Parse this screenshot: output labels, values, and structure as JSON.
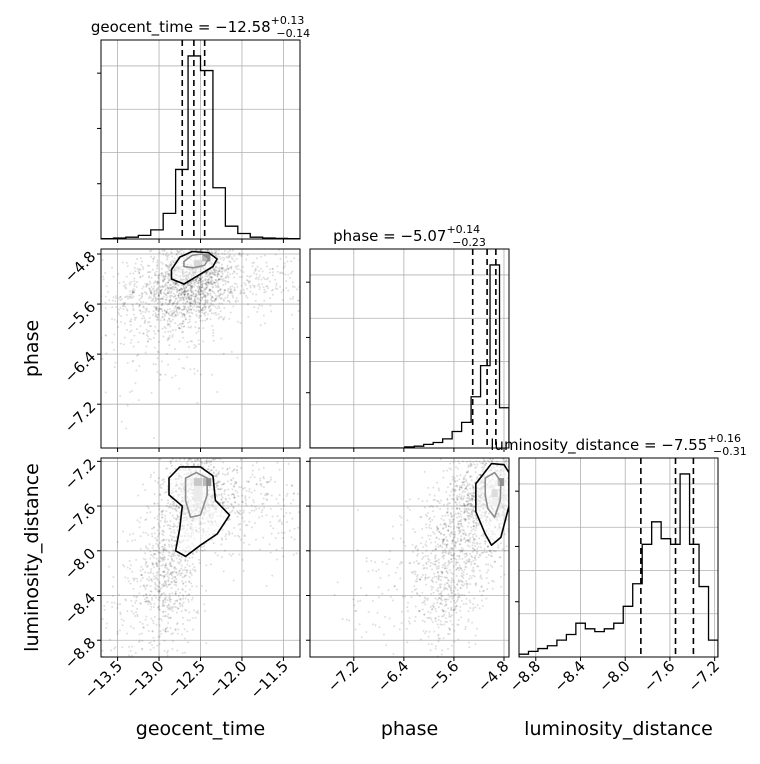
{
  "chart_data": {
    "type": "corner",
    "parameters": [
      "geocent_time",
      "phase",
      "luminosity_distance"
    ],
    "axis_labels": {
      "geocent_time": "geocent_time",
      "phase": "phase",
      "luminosity_distance": "luminosity_distance"
    },
    "ranges": {
      "geocent_time": [
        -13.7,
        -11.3
      ],
      "phase": [
        -7.9,
        -4.72
      ],
      "luminosity_distance": [
        -8.95,
        -7.17
      ]
    },
    "ticks": {
      "geocent_time": [
        -13.5,
        -13.0,
        -12.5,
        -12.0,
        -11.5
      ],
      "phase": [
        -7.2,
        -6.4,
        -5.6,
        -4.8
      ],
      "luminosity_distance": [
        -8.8,
        -8.4,
        -8.0,
        -7.6,
        -7.2
      ]
    },
    "tick_labels": {
      "geocent_time": [
        "−13.5",
        "−13.0",
        "−12.5",
        "−12.0",
        "−11.5"
      ],
      "phase": [
        "−7.2",
        "−6.4",
        "−5.6",
        "−4.8"
      ],
      "luminosity_distance": [
        "−8.8",
        "−8.4",
        "−8.0",
        "−7.6",
        "−7.2"
      ]
    },
    "titles": [
      {
        "param": "geocent_time",
        "label": "geocent_time",
        "median": "−12.58",
        "plus": "+0.13",
        "minus": "−0.14"
      },
      {
        "param": "phase",
        "label": "phase",
        "median": "−5.07",
        "plus": "+0.14",
        "minus": "−0.23"
      },
      {
        "param": "luminosity_distance",
        "label": "luminosity_distance",
        "median": "−7.55",
        "plus": "+0.16",
        "minus": "−0.31"
      }
    ],
    "quantiles": {
      "geocent_time": [
        -12.72,
        -12.58,
        -12.45
      ],
      "phase": [
        -5.3,
        -5.07,
        -4.93
      ],
      "luminosity_distance": [
        -7.86,
        -7.55,
        -7.39
      ]
    },
    "histograms": {
      "geocent_time": [
        0.2,
        0.5,
        1,
        2,
        5,
        14,
        38,
        100,
        92,
        28,
        7,
        3,
        1,
        0.5,
        0.3,
        0.2
      ],
      "phase": [
        0,
        0,
        0,
        0,
        0,
        0,
        0,
        0,
        0,
        0,
        0.6,
        1,
        2,
        3,
        5,
        9,
        14,
        28,
        45,
        100,
        22
      ],
      "luminosity_distance": [
        1,
        2,
        3,
        4,
        6,
        8,
        12,
        10,
        9,
        10,
        12,
        18,
        26,
        40,
        48,
        42,
        40,
        65,
        40,
        25,
        6
      ]
    },
    "density_clusters": [
      {
        "pair": [
          "geocent_time",
          "phase"
        ],
        "center": [
          -12.55,
          -5.1
        ],
        "spread": [
          0.22,
          0.35
        ],
        "n": 900
      },
      {
        "pair": [
          "geocent_time",
          "phase"
        ],
        "center": [
          -12.85,
          -5.5
        ],
        "spread": [
          0.35,
          0.3
        ],
        "n": 600
      },
      {
        "pair": [
          "geocent_time",
          "phase"
        ],
        "center": [
          -12.1,
          -5.2
        ],
        "spread": [
          0.55,
          0.3
        ],
        "n": 400
      },
      {
        "pair": [
          "geocent_time",
          "phase"
        ],
        "center": [
          -13.1,
          -6.0
        ],
        "spread": [
          0.45,
          0.6
        ],
        "n": 200
      },
      {
        "pair": [
          "geocent_time",
          "luminosity_distance"
        ],
        "center": [
          -12.55,
          -7.5
        ],
        "spread": [
          0.2,
          0.2
        ],
        "n": 900
      },
      {
        "pair": [
          "geocent_time",
          "luminosity_distance"
        ],
        "center": [
          -12.9,
          -8.2
        ],
        "spread": [
          0.18,
          0.3
        ],
        "n": 600
      },
      {
        "pair": [
          "geocent_time",
          "luminosity_distance"
        ],
        "center": [
          -12.0,
          -7.6
        ],
        "spread": [
          0.5,
          0.25
        ],
        "n": 400
      },
      {
        "pair": [
          "geocent_time",
          "luminosity_distance"
        ],
        "center": [
          -13.3,
          -8.6
        ],
        "spread": [
          0.35,
          0.25
        ],
        "n": 150
      },
      {
        "pair": [
          "phase",
          "luminosity_distance"
        ],
        "center": [
          -5.05,
          -7.5
        ],
        "spread": [
          0.3,
          0.2
        ],
        "n": 900
      },
      {
        "pair": [
          "phase",
          "luminosity_distance"
        ],
        "center": [
          -5.6,
          -7.9
        ],
        "spread": [
          0.35,
          0.25
        ],
        "n": 500
      },
      {
        "pair": [
          "phase",
          "luminosity_distance"
        ],
        "center": [
          -5.7,
          -8.4
        ],
        "spread": [
          0.3,
          0.25
        ],
        "n": 300
      },
      {
        "pair": [
          "phase",
          "luminosity_distance"
        ],
        "center": [
          -6.4,
          -8.4
        ],
        "spread": [
          0.5,
          0.3
        ],
        "n": 120
      }
    ],
    "contours": [
      {
        "pair": [
          "geocent_time",
          "phase"
        ],
        "level": "inner",
        "points": [
          [
            -12.7,
            -4.92
          ],
          [
            -12.6,
            -4.82
          ],
          [
            -12.48,
            -4.8
          ],
          [
            -12.4,
            -4.87
          ],
          [
            -12.45,
            -4.98
          ],
          [
            -12.58,
            -5.02
          ],
          [
            -12.7,
            -5.0
          ]
        ]
      },
      {
        "pair": [
          "geocent_time",
          "phase"
        ],
        "level": "outer",
        "points": [
          [
            -12.85,
            -5.05
          ],
          [
            -12.75,
            -4.85
          ],
          [
            -12.6,
            -4.76
          ],
          [
            -12.4,
            -4.78
          ],
          [
            -12.3,
            -4.88
          ],
          [
            -12.35,
            -5.0
          ],
          [
            -12.5,
            -5.12
          ],
          [
            -12.7,
            -5.28
          ],
          [
            -12.85,
            -5.2
          ]
        ]
      },
      {
        "pair": [
          "geocent_time",
          "luminosity_distance"
        ],
        "level": "inner",
        "points": [
          [
            -12.68,
            -7.35
          ],
          [
            -12.55,
            -7.3
          ],
          [
            -12.42,
            -7.35
          ],
          [
            -12.42,
            -7.5
          ],
          [
            -12.5,
            -7.68
          ],
          [
            -12.62,
            -7.7
          ],
          [
            -12.68,
            -7.55
          ]
        ]
      },
      {
        "pair": [
          "geocent_time",
          "luminosity_distance"
        ],
        "level": "outer",
        "points": [
          [
            -12.88,
            -7.35
          ],
          [
            -12.75,
            -7.25
          ],
          [
            -12.5,
            -7.25
          ],
          [
            -12.35,
            -7.33
          ],
          [
            -12.32,
            -7.55
          ],
          [
            -12.15,
            -7.68
          ],
          [
            -12.3,
            -7.85
          ],
          [
            -12.5,
            -7.95
          ],
          [
            -12.68,
            -8.05
          ],
          [
            -12.8,
            -8.0
          ],
          [
            -12.75,
            -7.8
          ],
          [
            -12.72,
            -7.6
          ],
          [
            -12.88,
            -7.5
          ]
        ]
      },
      {
        "pair": [
          "phase",
          "luminosity_distance"
        ],
        "level": "inner",
        "points": [
          [
            -5.1,
            -7.35
          ],
          [
            -4.95,
            -7.3
          ],
          [
            -4.85,
            -7.38
          ],
          [
            -4.86,
            -7.55
          ],
          [
            -4.95,
            -7.7
          ],
          [
            -5.06,
            -7.62
          ],
          [
            -5.1,
            -7.5
          ]
        ]
      },
      {
        "pair": [
          "phase",
          "luminosity_distance"
        ],
        "level": "outer",
        "points": [
          [
            -5.25,
            -7.4
          ],
          [
            -5.0,
            -7.22
          ],
          [
            -4.8,
            -7.23
          ],
          [
            -4.72,
            -7.3
          ],
          [
            -4.72,
            -7.6
          ],
          [
            -4.85,
            -7.88
          ],
          [
            -5.0,
            -7.95
          ],
          [
            -5.1,
            -7.85
          ],
          [
            -5.25,
            -7.65
          ]
        ]
      }
    ],
    "hot_cells": [
      {
        "pair": [
          "geocent_time",
          "phase"
        ],
        "x": -12.48,
        "y": -4.92,
        "w": 0.1,
        "h": 0.12,
        "shade": "#111111"
      },
      {
        "pair": [
          "geocent_time",
          "phase"
        ],
        "x": -12.58,
        "y": -5.02,
        "w": 0.1,
        "h": 0.12,
        "shade": "#777777"
      },
      {
        "pair": [
          "geocent_time",
          "luminosity_distance"
        ],
        "x": -12.47,
        "y": -7.42,
        "w": 0.1,
        "h": 0.07,
        "shade": "#111111"
      },
      {
        "pair": [
          "geocent_time",
          "luminosity_distance"
        ],
        "x": -12.58,
        "y": -7.42,
        "w": 0.1,
        "h": 0.07,
        "shade": "#444444"
      },
      {
        "pair": [
          "geocent_time",
          "luminosity_distance"
        ],
        "x": -12.58,
        "y": -7.56,
        "w": 0.1,
        "h": 0.14,
        "shade": "#bbbbbb"
      },
      {
        "pair": [
          "phase",
          "luminosity_distance"
        ],
        "x": -4.9,
        "y": -7.42,
        "w": 0.1,
        "h": 0.07,
        "shade": "#111111"
      },
      {
        "pair": [
          "phase",
          "luminosity_distance"
        ],
        "x": -5.0,
        "y": -7.52,
        "w": 0.1,
        "h": 0.07,
        "shade": "#888888"
      },
      {
        "pair": [
          "phase",
          "luminosity_distance"
        ],
        "x": -5.0,
        "y": -7.6,
        "w": 0.1,
        "h": 0.08,
        "shade": "#cccccc"
      }
    ],
    "grid": true
  }
}
